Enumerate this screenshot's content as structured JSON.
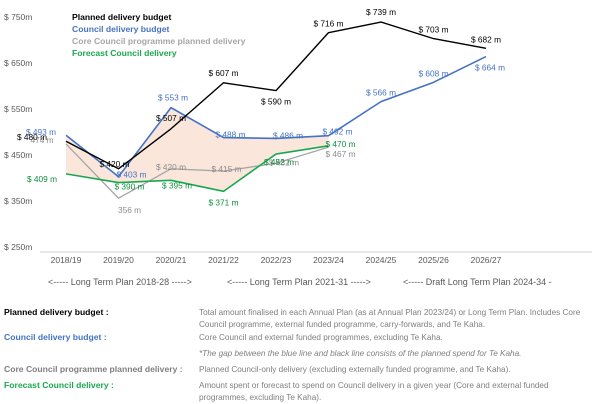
{
  "colors": {
    "planned": "#000000",
    "council": "#4472c4",
    "core": "#a6a6a6",
    "forecast": "#1aa84f",
    "gap_fill": "#f8ddcf"
  },
  "legend": [
    {
      "key": "planned",
      "label": "Planned delivery budget"
    },
    {
      "key": "council",
      "label": "Council delivery budget"
    },
    {
      "key": "core",
      "label": "Core Council programme planned delivery"
    },
    {
      "key": "forecast",
      "label": "Forecast Council delivery"
    }
  ],
  "chart_data": {
    "type": "line",
    "categories": [
      "2018/19",
      "2019/20",
      "2020/21",
      "2021/22",
      "2022/23",
      "2023/24",
      "2024/25",
      "2025/26",
      "2026/27"
    ],
    "y_ticks": [
      {
        "value": 250,
        "label": "$ 250m"
      },
      {
        "value": 350,
        "label": "$ 350m"
      },
      {
        "value": 450,
        "label": "$ 450m"
      },
      {
        "value": 550,
        "label": "$ 550m"
      },
      {
        "value": 650,
        "label": "$ 650m"
      },
      {
        "value": 750,
        "label": "$ 750m"
      }
    ],
    "ylim": [
      250,
      750
    ],
    "grid": false,
    "legend_position": "top-left",
    "series": [
      {
        "key": "planned",
        "name": "Planned delivery budget",
        "values": [
          480,
          420,
          507,
          607,
          590,
          716,
          739,
          703,
          682
        ],
        "labels": [
          "$ 480 m",
          "$ 420 m",
          "$ 507 m",
          "$ 607 m",
          "$ 590 m",
          "$ 716 m",
          "$ 739 m",
          "$ 703 m",
          "$ 682 m"
        ]
      },
      {
        "key": "council",
        "name": "Council delivery budget",
        "values": [
          493,
          403,
          553,
          488,
          486,
          492,
          566,
          608,
          664
        ],
        "labels": [
          "$ 493 m",
          "$ 403 m",
          "$ 553 m",
          "$ 488 m",
          "$ 486 m",
          "$ 492 m",
          "$ 566 m",
          "$ 608 m",
          "$ 664 m"
        ]
      },
      {
        "key": "core",
        "name": "Core Council programme planned delivery",
        "values": [
          474,
          356,
          420,
          415,
          432,
          467,
          null,
          null,
          null
        ],
        "labels": [
          "474 m",
          "356 m",
          "$ 420 m",
          "$ 415 m",
          "$ 432 m",
          "$ 467 m",
          "",
          "",
          ""
        ]
      },
      {
        "key": "forecast",
        "name": "Forecast Council delivery",
        "values": [
          409,
          390,
          395,
          371,
          452,
          470,
          null,
          null,
          null
        ],
        "labels": [
          "$ 409 m",
          "$ 390 m",
          "$ 395 m",
          "$ 371 m",
          "$ 452 m",
          "$ 470 m",
          "",
          "",
          ""
        ]
      }
    ],
    "periods": [
      {
        "label": "<-----   Long Term Plan 2018-28   ----->"
      },
      {
        "label": "<-----   Long Term Plan 2021-31   ----->"
      },
      {
        "label": "<-----   Draft Long Term Plan 2024-34   -"
      }
    ]
  },
  "definitions": [
    {
      "term": "Planned delivery budget :",
      "text": "Total amount finalised in each Annual Plan (as at Annual Plan 2023/24) or Long Term Plan. Includes Core Council programme, external funded programme, carry-forwards, and Te Kaha.",
      "color": "#000000"
    },
    {
      "term": "Council delivery budget :",
      "text": "Core Council and external funded programmes, excluding Te Kaha.",
      "color": "#4472c4"
    },
    {
      "term": "",
      "text": "*The gap between the blue line and black line consists of the planned spend for Te Kaha.",
      "color": "#7f7f7f"
    },
    {
      "term": "Core Council programme planned delivery :",
      "text": "Planned Council-only delivery (excluding externally funded programme, and Te Kaha).",
      "color": "#7f7f7f"
    },
    {
      "term": "Forecast Council delivery :",
      "text": "Amount spent or forecast to spend on Council delivery in a given year (Core and external funded programmes, excluding Te Kaha).",
      "color": "#1aa84f"
    }
  ]
}
